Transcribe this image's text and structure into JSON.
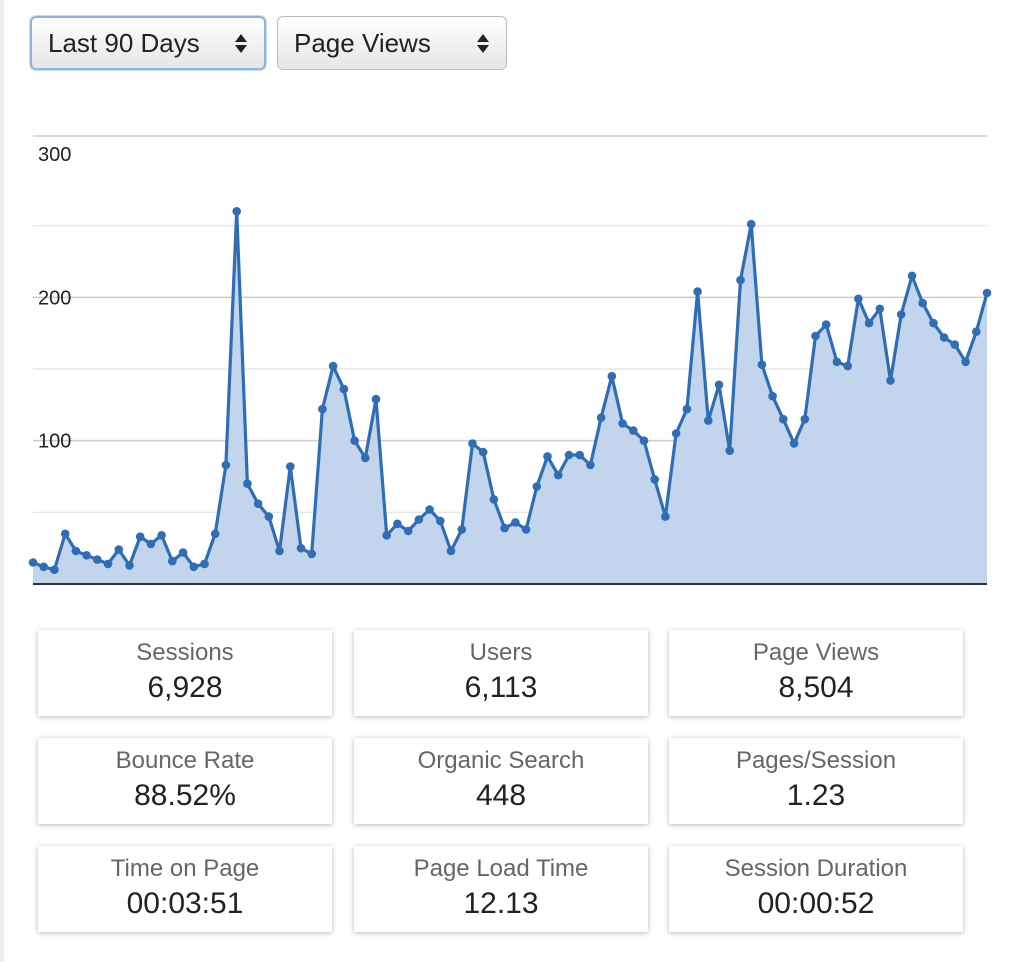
{
  "filters": {
    "range": {
      "selected": "Last 90 Days"
    },
    "metric": {
      "selected": "Page Views"
    }
  },
  "colors": {
    "line": "#2f6db5",
    "fill": "#c3d5ec",
    "grid_major": "#cccccc",
    "grid_minor": "#e2e2e2",
    "baseline": "#333333"
  },
  "chart_data": {
    "type": "area",
    "ylim": [
      0,
      300
    ],
    "yticks": [
      "300",
      "200",
      "100"
    ],
    "grid": true,
    "values": [
      15,
      12,
      10,
      35,
      23,
      20,
      17,
      14,
      24,
      13,
      33,
      28,
      34,
      16,
      22,
      12,
      14,
      35,
      83,
      260,
      70,
      56,
      47,
      23,
      82,
      25,
      21,
      122,
      152,
      136,
      100,
      88,
      129,
      34,
      42,
      37,
      45,
      52,
      44,
      23,
      38,
      98,
      92,
      59,
      39,
      43,
      38,
      68,
      89,
      76,
      90,
      90,
      83,
      116,
      145,
      112,
      107,
      100,
      73,
      47,
      105,
      122,
      204,
      114,
      139,
      93,
      212,
      251,
      153,
      131,
      115,
      98,
      115,
      173,
      181,
      155,
      152,
      199,
      182,
      192,
      142,
      188,
      215,
      196,
      182,
      172,
      167,
      155,
      176,
      203
    ]
  },
  "stats": [
    {
      "title": "Sessions",
      "value": "6,928"
    },
    {
      "title": "Users",
      "value": "6,113"
    },
    {
      "title": "Page Views",
      "value": "8,504"
    },
    {
      "title": "Bounce Rate",
      "value": "88.52%"
    },
    {
      "title": "Organic Search",
      "value": "448"
    },
    {
      "title": "Pages/Session",
      "value": "1.23"
    },
    {
      "title": "Time on Page",
      "value": "00:03:51"
    },
    {
      "title": "Page Load Time",
      "value": "12.13"
    },
    {
      "title": "Session Duration",
      "value": "00:00:52"
    }
  ]
}
